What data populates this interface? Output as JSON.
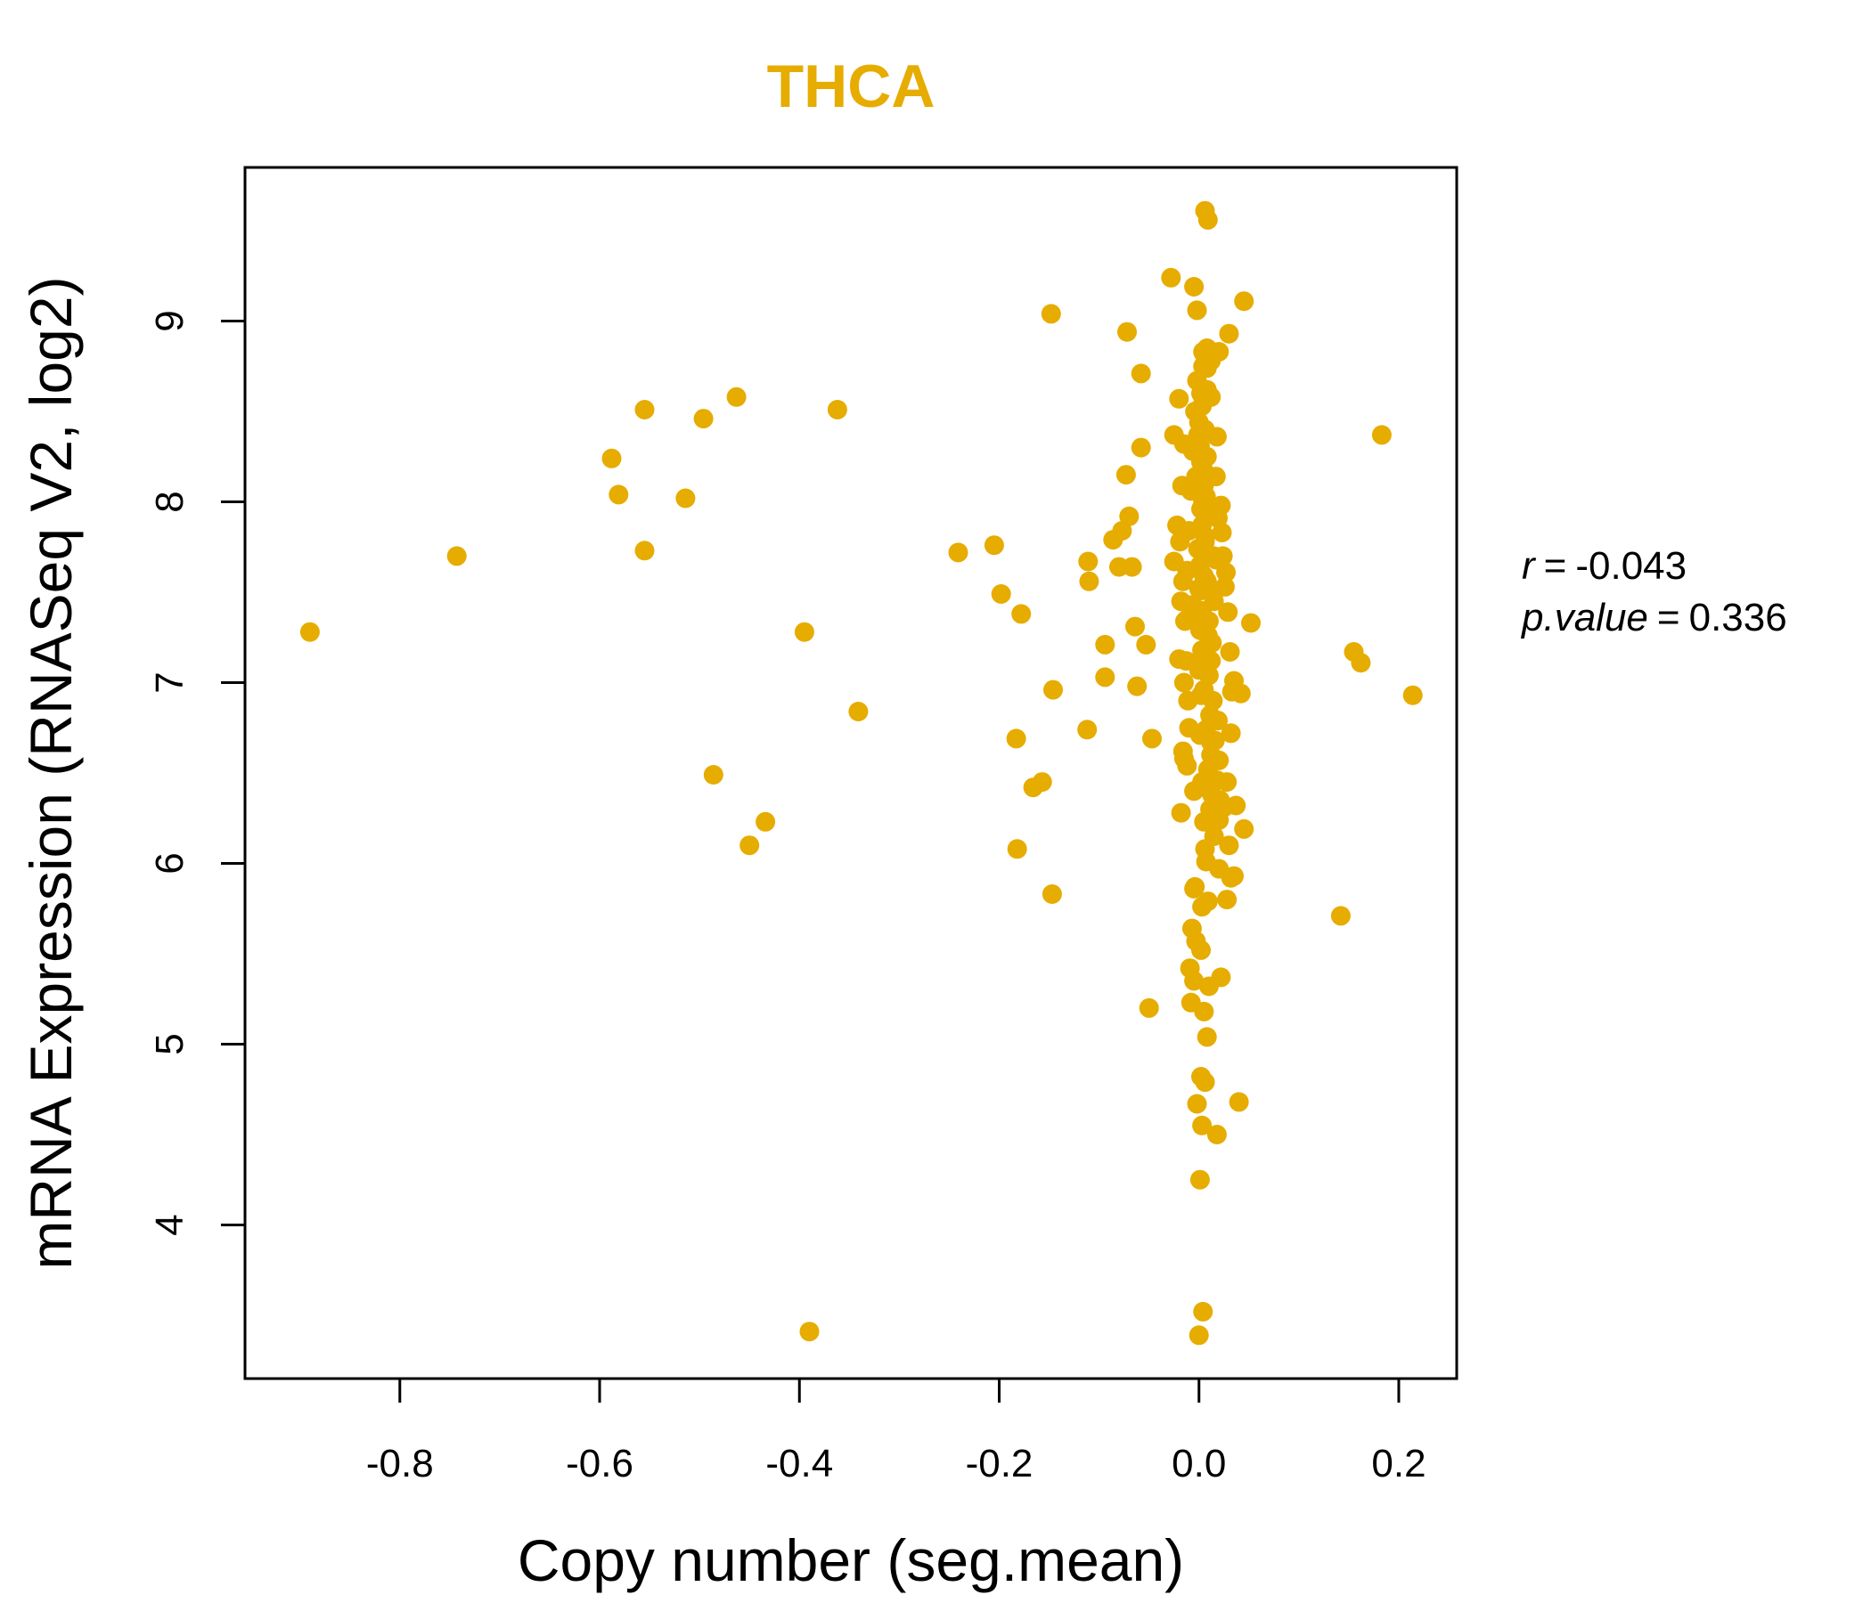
{
  "chart_data": {
    "type": "scatter",
    "title": "THCA",
    "xlabel": "Copy number (seg.mean)",
    "ylabel": "mRNA Expression (RNASeq V2, log2)",
    "xlim": [
      -0.955,
      0.258
    ],
    "ylim": [
      3.15,
      9.85
    ],
    "x_ticks": [
      -0.8,
      -0.6,
      -0.4,
      -0.2,
      0.0,
      0.2
    ],
    "x_tick_labels": [
      "-0.8",
      "-0.6",
      "-0.4",
      "-0.2",
      "0.0",
      "0.2"
    ],
    "y_ticks": [
      4,
      5,
      6,
      7,
      8,
      9
    ],
    "y_tick_labels": [
      "4",
      "5",
      "6",
      "7",
      "8",
      "9"
    ],
    "grid": false,
    "colors": {
      "points": "#E6AC00",
      "title": "#E6AC00",
      "axes": "#000000"
    },
    "annotation": {
      "r_label": "r",
      "r_value": "-0.043",
      "p_label": "p.value",
      "p_value": "0.336",
      "equals": "="
    },
    "points": {
      "x": [
        -0.89,
        -0.743,
        -0.588,
        -0.581,
        -0.555,
        -0.555,
        -0.514,
        -0.496,
        -0.463,
        -0.486,
        -0.45,
        -0.434,
        -0.395,
        -0.39,
        -0.362,
        -0.341,
        -0.241,
        -0.205,
        -0.198,
        -0.178,
        -0.183,
        -0.182,
        -0.166,
        -0.157,
        -0.147,
        -0.148,
        -0.146,
        -0.112,
        -0.11,
        -0.111,
        -0.094,
        -0.094,
        -0.086,
        -0.08,
        -0.077,
        -0.073,
        -0.072,
        -0.07,
        -0.067,
        -0.064,
        -0.062,
        -0.058,
        -0.058,
        -0.053,
        -0.05,
        -0.047,
        -0.028,
        -0.025,
        -0.02,
        -0.015,
        -0.012,
        -0.016,
        -0.005,
        -0.002,
        0.006,
        0.009,
        0.012,
        0.02,
        0.03,
        0.045,
        0.142,
        0.155,
        0.162,
        0.183,
        0.214,
        -0.008,
        0.005,
        0.008,
        0.002,
        -0.002,
        0.003,
        0.001,
        0.004,
        0.0,
        0.006,
        0.018,
        0.022,
        0.04,
        0.032,
        0.037,
        0.045,
        0.052,
        0.042,
        0.035,
        0.028,
        0.025,
        0.032,
        0.03,
        0.035,
        0.015,
        0.01,
        0.02,
        0.028,
        0.025,
        -0.004,
        0.003,
        -0.012,
        -0.015,
        -0.018,
        -0.005,
        -0.01,
        -0.015,
        -0.02,
        -0.018,
        -0.022,
        -0.017,
        -0.025,
        0.012,
        0.008,
        0.005,
        -0.002,
        0.0,
        0.002,
        0.004,
        0.006,
        0.008,
        0.01,
        0.012,
        0.014,
        0.016,
        0.018,
        0.02,
        0.022,
        0.024,
        0.026,
        -0.004,
        -0.006,
        -0.008,
        -0.01,
        -0.012,
        0.001,
        0.003,
        0.005,
        0.007,
        0.009,
        0.011,
        0.013,
        0.015,
        0.017,
        0.019,
        -0.003,
        -0.001,
        0.002,
        0.004,
        0.006,
        -0.005,
        -0.007,
        -0.009,
        0.0,
        0.001,
        0.002,
        0.003,
        0.004,
        0.005,
        0.006,
        0.007,
        0.008,
        0.009,
        0.01,
        0.011,
        0.012,
        0.013,
        0.014,
        0.015,
        0.016,
        0.017,
        0.018,
        0.019,
        0.02,
        0.021,
        -0.011,
        -0.013,
        -0.014,
        -0.016,
        -0.019,
        0.023,
        0.027,
        0.029,
        0.031,
        0.033,
        0.001,
        0.002,
        0.003,
        0.004,
        0.005,
        0.006,
        0.007,
        0.008,
        0.0,
        -0.001,
        0.002,
        0.004,
        0.006,
        0.008,
        0.01,
        0.012,
        0.003,
        0.005,
        0.007,
        0.009,
        -0.003,
        -0.005,
        -0.007,
        0.001,
        0.003,
        0.005,
        0.001,
        0.003,
        0.004,
        0.002
      ],
      "y": [
        7.28,
        7.7,
        8.24,
        8.04,
        8.51,
        7.73,
        8.02,
        8.46,
        8.58,
        6.49,
        6.1,
        6.23,
        7.28,
        3.41,
        8.51,
        6.84,
        7.72,
        7.76,
        7.49,
        7.38,
        6.69,
        6.08,
        6.42,
        6.45,
        5.83,
        9.04,
        6.96,
        6.74,
        7.56,
        7.67,
        7.21,
        7.03,
        7.79,
        7.64,
        7.84,
        8.15,
        8.94,
        7.92,
        7.64,
        7.31,
        6.98,
        8.3,
        8.71,
        7.21,
        5.2,
        6.69,
        9.24,
        7.67,
        8.57,
        8.32,
        7.35,
        6.62,
        9.19,
        9.06,
        9.61,
        9.56,
        8.78,
        8.83,
        8.93,
        9.11,
        5.71,
        7.17,
        7.11,
        8.37,
        6.93,
        5.23,
        5.18,
        5.04,
        4.82,
        4.67,
        4.55,
        4.25,
        3.52,
        3.39,
        4.79,
        4.5,
        5.37,
        4.68,
        5.92,
        6.32,
        6.19,
        7.33,
        6.94,
        7.01,
        6.45,
        6.31,
        6.72,
        6.1,
        5.93,
        6.15,
        5.32,
        5.97,
        5.8,
        6.32,
        5.87,
        5.76,
        6.54,
        6.58,
        6.28,
        6.4,
        6.75,
        7.0,
        7.13,
        7.45,
        7.87,
        8.09,
        8.37,
        8.58,
        8.74,
        8.82,
        8.67,
        8.44,
        8.22,
        8.0,
        7.78,
        7.56,
        7.34,
        7.12,
        6.9,
        6.68,
        6.46,
        6.24,
        7.98,
        7.7,
        7.53,
        8.5,
        8.28,
        8.06,
        7.84,
        7.62,
        7.4,
        7.18,
        6.96,
        6.74,
        6.52,
        6.3,
        7.22,
        7.45,
        7.68,
        7.91,
        8.14,
        8.37,
        8.6,
        8.83,
        6.08,
        5.86,
        5.64,
        5.42,
        7.07,
        7.29,
        7.51,
        7.73,
        7.95,
        8.17,
        8.39,
        8.61,
        8.85,
        7.26,
        7.04,
        6.82,
        6.6,
        6.38,
        7.48,
        7.7,
        7.92,
        8.14,
        8.36,
        6.79,
        6.57,
        6.35,
        6.9,
        7.12,
        7.34,
        7.56,
        7.78,
        7.83,
        7.61,
        7.39,
        7.17,
        6.95,
        6.71,
        6.93,
        7.15,
        7.37,
        7.59,
        7.81,
        8.03,
        8.25,
        7.52,
        7.74,
        7.96,
        8.18,
        8.4,
        8.62,
        8.84,
        6.67,
        6.45,
        6.23,
        6.01,
        5.79,
        5.57,
        5.35,
        7.43,
        7.65,
        7.87,
        8.09,
        8.31,
        8.53,
        8.75,
        5.52
      ]
    }
  }
}
